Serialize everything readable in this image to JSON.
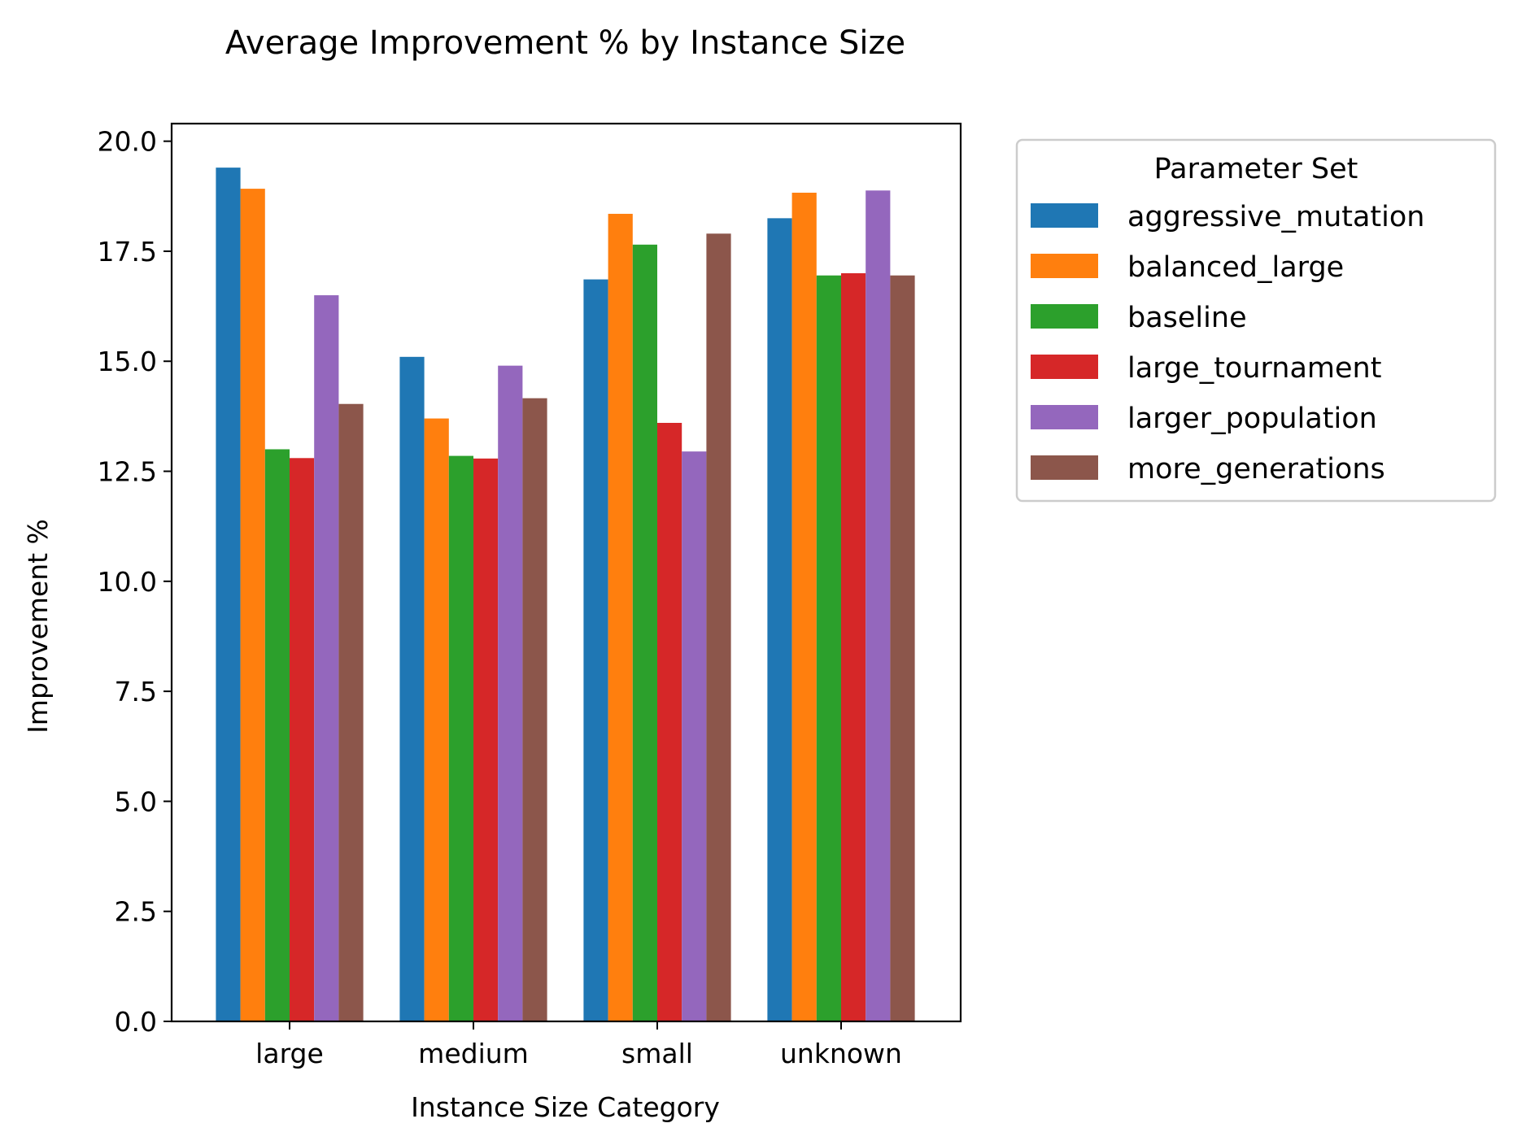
{
  "chart_data": {
    "type": "bar",
    "title": "Average Improvement % by Instance Size",
    "xlabel": "Instance Size Category",
    "ylabel": "Improvement %",
    "ylim": [
      0,
      20.4
    ],
    "yticks": [
      0,
      2.5,
      5,
      7.5,
      10,
      12.5,
      15,
      17.5,
      20
    ],
    "ytick_labels": [
      "0.0",
      "2.5",
      "5.0",
      "7.5",
      "10.0",
      "12.5",
      "15.0",
      "17.5",
      "20.0"
    ],
    "grid": false,
    "legend": {
      "title": "Parameter Set",
      "placement": "outside-right-top"
    },
    "categories": [
      "large",
      "medium",
      "small",
      "unknown"
    ],
    "series": [
      {
        "name": "aggressive_mutation",
        "color": "#1f77b4",
        "values": [
          19.4,
          15.1,
          16.86,
          18.25
        ]
      },
      {
        "name": "balanced_large",
        "color": "#ff7f0e",
        "values": [
          18.92,
          13.7,
          18.35,
          18.83
        ]
      },
      {
        "name": "baseline",
        "color": "#2ca02c",
        "values": [
          13.0,
          12.85,
          17.65,
          16.95
        ]
      },
      {
        "name": "large_tournament",
        "color": "#d62728",
        "values": [
          12.8,
          12.79,
          13.6,
          17.0
        ]
      },
      {
        "name": "larger_population",
        "color": "#9467bd",
        "values": [
          16.5,
          14.9,
          12.95,
          18.88
        ]
      },
      {
        "name": "more_generations",
        "color": "#8c564b",
        "values": [
          14.03,
          14.16,
          17.9,
          16.95
        ]
      }
    ]
  }
}
